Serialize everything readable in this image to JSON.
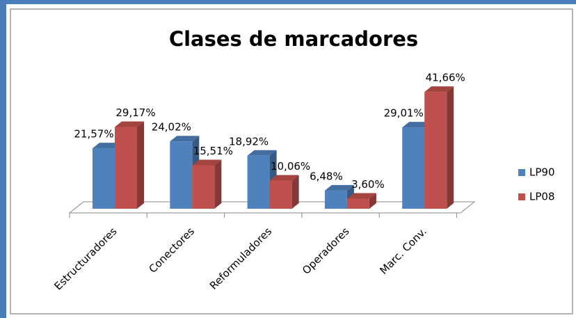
{
  "chart_data": {
    "type": "bar3d",
    "title": "Clases de marcadores",
    "categories": [
      "Estructuradores",
      "Conectores",
      "Reformuladores",
      "Operadores",
      "Marc. Conv."
    ],
    "series": [
      {
        "name": "LP90",
        "color": "#4f81bd",
        "values": [
          21.57,
          24.02,
          18.92,
          6.48,
          29.01
        ],
        "value_labels": [
          "21,57%",
          "24,02%",
          "18,92%",
          "6,48%",
          "29,01%"
        ]
      },
      {
        "name": "LP08",
        "color": "#c0504d",
        "values": [
          29.17,
          15.51,
          10.06,
          3.6,
          41.66
        ],
        "value_labels": [
          "29,17%",
          "15,51%",
          "10,06%",
          "3,60%",
          "41,66%"
        ]
      }
    ],
    "legend": "right"
  }
}
